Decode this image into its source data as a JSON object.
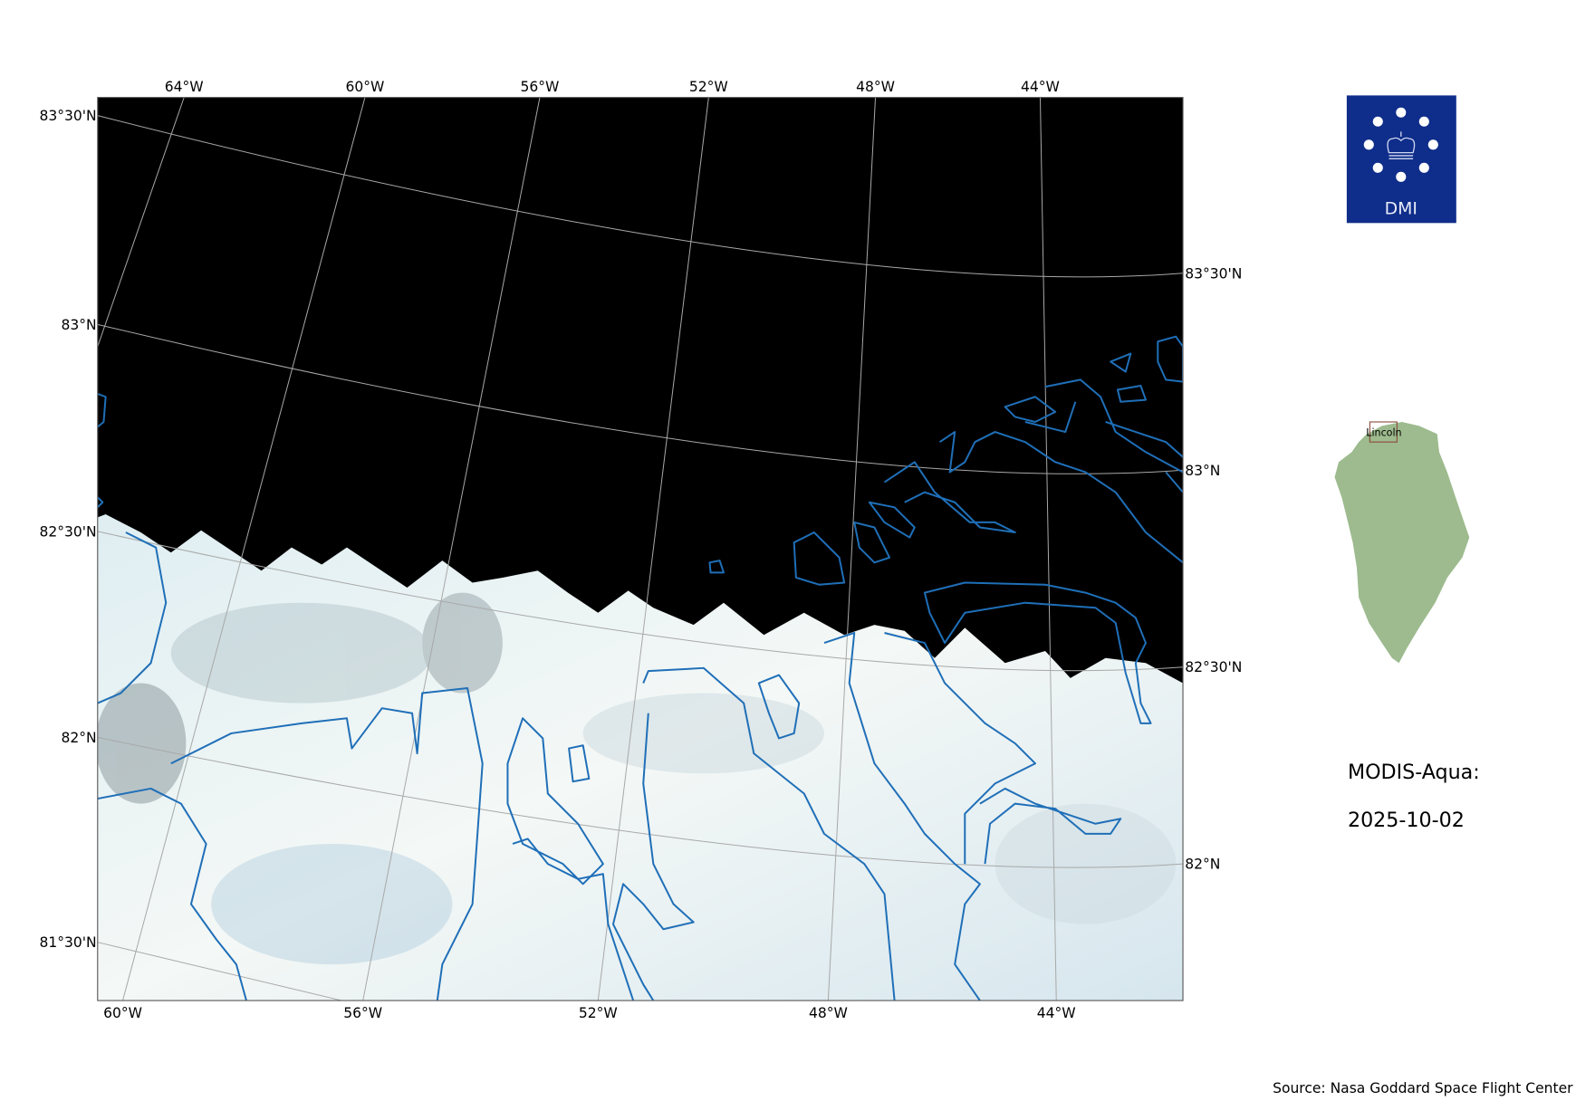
{
  "map": {
    "top_lon_labels": [
      "64°W",
      "60°W",
      "56°W",
      "52°W",
      "48°W",
      "44°W"
    ],
    "bottom_lon_labels": [
      "60°W",
      "56°W",
      "52°W",
      "48°W",
      "44°W"
    ],
    "left_lat_labels": [
      "83°30'N",
      "83°N",
      "82°30'N",
      "82°N",
      "81°30'N"
    ],
    "right_lat_labels": [
      "83°30'N",
      "83°N",
      "82°30'N",
      "82°N"
    ],
    "colors": {
      "coastline": "#1f6fb8",
      "no_data": "#000000",
      "ice": "#e8f2f4",
      "graticule": "#a8a8a8"
    }
  },
  "logo": {
    "text": "DMI",
    "color": "#0f2d8a"
  },
  "inset": {
    "region_label": "Lincoln",
    "land_color": "#9dbb8e"
  },
  "info": {
    "sensor": "MODIS-Aqua:",
    "date": "2025-10-02"
  },
  "source": "Source: Nasa Goddard Space Flight Center"
}
